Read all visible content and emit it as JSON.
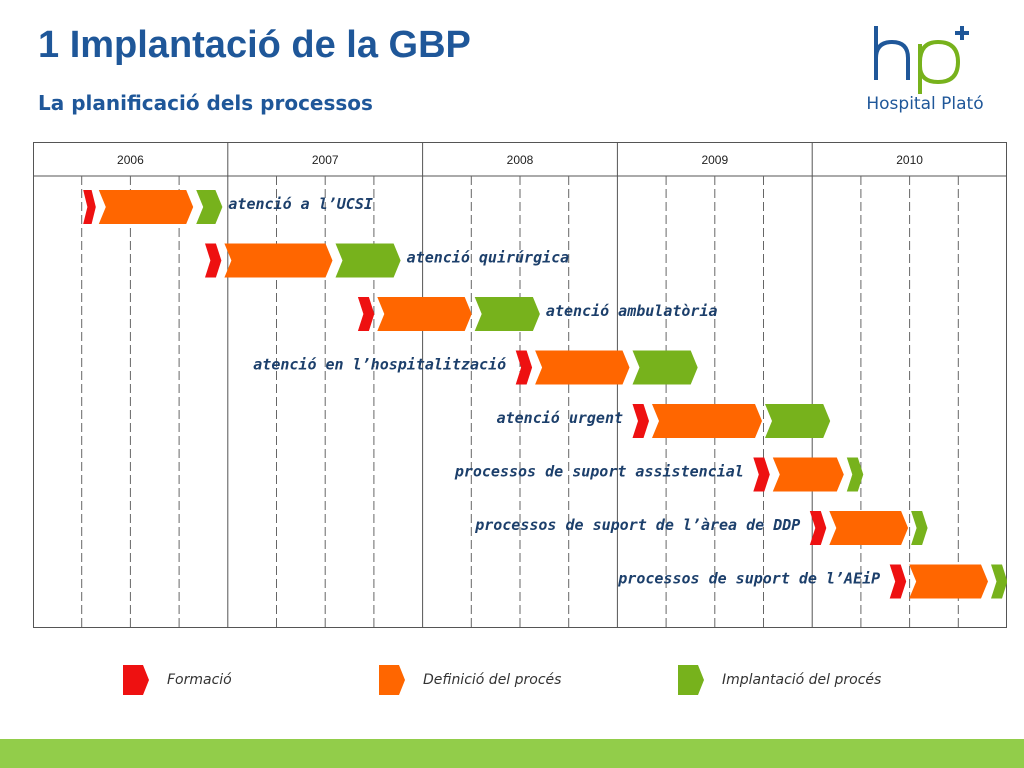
{
  "header": {
    "title": "1 Implantació de la GBP",
    "subtitle": "La planificació dels processos"
  },
  "logo": {
    "text": "Hospital Plató",
    "monogram": "hp",
    "icon": "cross-icon"
  },
  "timeline": {
    "years": [
      "2006",
      "2007",
      "2008",
      "2009",
      "2010"
    ],
    "quarter_gridlines": true,
    "rows": [
      {
        "label": "atenció a l’UCSI",
        "label_side": "right",
        "start": 2006.25,
        "formacio": 0.08,
        "definicio": 0.5,
        "implantacio": 0.15
      },
      {
        "label": "atenció quirúrgica",
        "label_side": "right",
        "start": 2006.875,
        "formacio": 0.1,
        "definicio": 0.57,
        "implantacio": 0.35
      },
      {
        "label": "atenció ambulatòria",
        "label_side": "right",
        "start": 2007.66,
        "formacio": 0.1,
        "definicio": 0.5,
        "implantacio": 0.35
      },
      {
        "label": "atenció en l’hospitalització",
        "label_side": "left",
        "start": 2008.47,
        "formacio": 0.1,
        "definicio": 0.5,
        "implantacio": 0.35
      },
      {
        "label": "atenció urgent",
        "label_side": "left",
        "start": 2009.07,
        "formacio": 0.1,
        "definicio": 0.58,
        "implantacio": 0.35
      },
      {
        "label": "processos de suport assistencial",
        "label_side": "left",
        "start": 2009.69,
        "formacio": 0.1,
        "definicio": 0.38,
        "implantacio": 0.1
      },
      {
        "label": "processos de suport de l’àrea de DDP",
        "label_side": "left",
        "start": 2009.98,
        "formacio": 0.1,
        "definicio": 0.42,
        "implantacio": 0.1
      },
      {
        "label": "processos de suport de l’AEiP",
        "label_side": "left",
        "start": 2010.39,
        "formacio": 0.1,
        "definicio": 0.42,
        "implantacio": 0.1
      }
    ]
  },
  "legend": [
    {
      "label": "Formació",
      "color": "#ee1111"
    },
    {
      "label": "Definició del procés",
      "color": "#ff6600"
    },
    {
      "label": "Implantació del procés",
      "color": "#77b21c"
    }
  ],
  "colors": {
    "formacio": "#ee1111",
    "definicio": "#ff6600",
    "implantacio": "#77b21c",
    "title": "#1f5799",
    "label": "#1c3f6b",
    "footer": "#92cd4a"
  }
}
